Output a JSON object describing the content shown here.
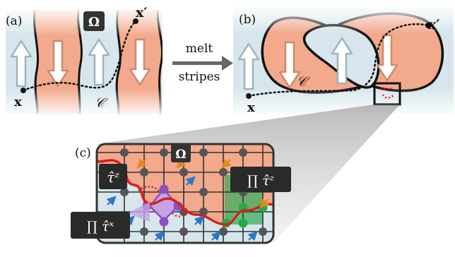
{
  "panels": {
    "a": {
      "label": "(a)"
    },
    "b": {
      "label": "(b)"
    },
    "c": {
      "label": "(c)"
    }
  },
  "transition": {
    "line1": "melt",
    "line2": "stripes"
  },
  "symbols": {
    "omega": "Ω",
    "x_start": "x",
    "x_end": "x′",
    "contour": "𝒞",
    "tau_z": "τ̂ᶻ",
    "prod_tau_z": "∏ τ̂ᶻ",
    "prod_tau_x": "∏ τ̂ˣ"
  },
  "colors": {
    "salmon": "#f2a98c",
    "light_blue": "#d6e6ec",
    "dark_gray": "#4a4a4a",
    "arrow_fill": "#ffffff",
    "red_path": "#d6201a",
    "orange_arrow": "#e08a1e",
    "blue_arrow": "#2a78c8",
    "purple": "#8e4fc0",
    "green": "#2aa84a"
  }
}
